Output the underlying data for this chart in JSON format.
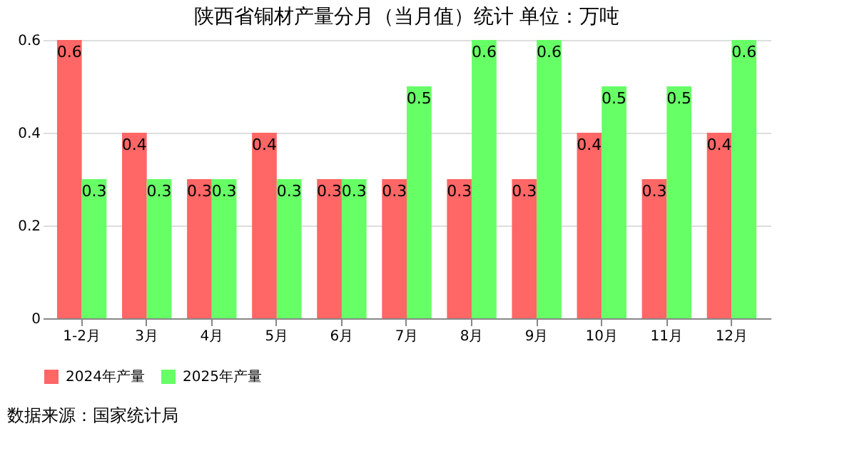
{
  "chart_data": {
    "type": "bar",
    "title": "陕西省铜材产量分月（当月值）统计  单位：万吨",
    "categories": [
      "1-2月",
      "3月",
      "4月",
      "5月",
      "6月",
      "7月",
      "8月",
      "9月",
      "10月",
      "11月",
      "12月"
    ],
    "series": [
      {
        "name": "2024年产量",
        "color": "#ff6666",
        "values": [
          0.6,
          0.4,
          0.3,
          0.4,
          0.3,
          0.3,
          0.3,
          0.3,
          0.4,
          0.3,
          0.4
        ]
      },
      {
        "name": "2025年产量",
        "color": "#66ff66",
        "values": [
          0.3,
          0.3,
          0.3,
          0.3,
          0.3,
          0.5,
          0.6,
          0.6,
          0.5,
          0.5,
          0.6
        ]
      }
    ],
    "ylim": [
      0,
      0.6
    ],
    "yticks": [
      0,
      0.2,
      0.4,
      0.6
    ],
    "grid": "y",
    "legend": "bottom",
    "data_labels": true,
    "annotations": [
      "数据来源：国家统计局"
    ]
  }
}
